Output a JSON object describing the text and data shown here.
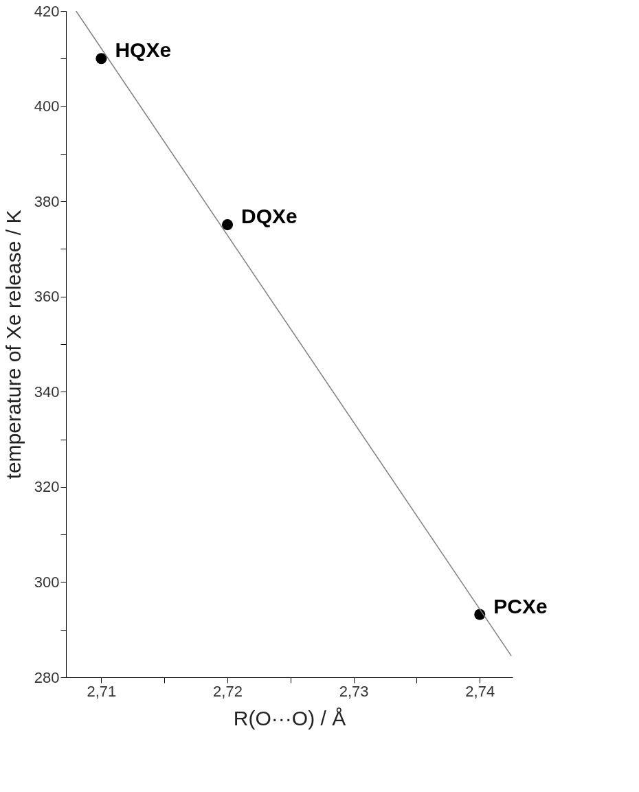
{
  "chart_data": {
    "type": "scatter",
    "xlabel": "R(O···O) / Å",
    "ylabel": "temperature of Xe release / K",
    "series": [
      {
        "x": [
          2.71,
          2.72,
          2.74
        ],
        "values": [
          410,
          375.1,
          293.2
        ],
        "color": "#000000",
        "marker": "circle"
      },
      {
        "type": "line",
        "x": [
          2.708,
          2.7425
        ],
        "values": [
          420,
          284.5
        ],
        "color": "#808080",
        "marker": "none",
        "line_style": "solid"
      }
    ],
    "annotations": [
      {
        "text": "HQXe",
        "x": 2.71,
        "y": 410
      },
      {
        "text": "DQXe",
        "x": 2.72,
        "y": 375.1
      },
      {
        "text": "PCXe",
        "x": 2.74,
        "y": 293.2
      }
    ],
    "xlim": [
      2.7072,
      2.7426
    ],
    "ylim": [
      280,
      420
    ],
    "xticks": [
      {
        "value": 2.71,
        "label": "2,71"
      },
      {
        "value": 2.715,
        "label": null
      },
      {
        "value": 2.72,
        "label": "2,72"
      },
      {
        "value": 2.725,
        "label": null
      },
      {
        "value": 2.73,
        "label": "2,73"
      },
      {
        "value": 2.735,
        "label": null
      },
      {
        "value": 2.74,
        "label": "2,74"
      }
    ],
    "yticks": [
      280,
      {
        "value": 290,
        "label": null
      },
      300,
      {
        "value": 310,
        "label": null
      },
      320,
      {
        "value": 330,
        "label": null
      },
      340,
      {
        "value": 350,
        "label": null
      },
      360,
      {
        "value": 370,
        "label": null
      },
      380,
      {
        "value": 390,
        "label": null
      },
      400,
      {
        "value": 410,
        "label": null
      },
      420
    ],
    "grid": false
  }
}
